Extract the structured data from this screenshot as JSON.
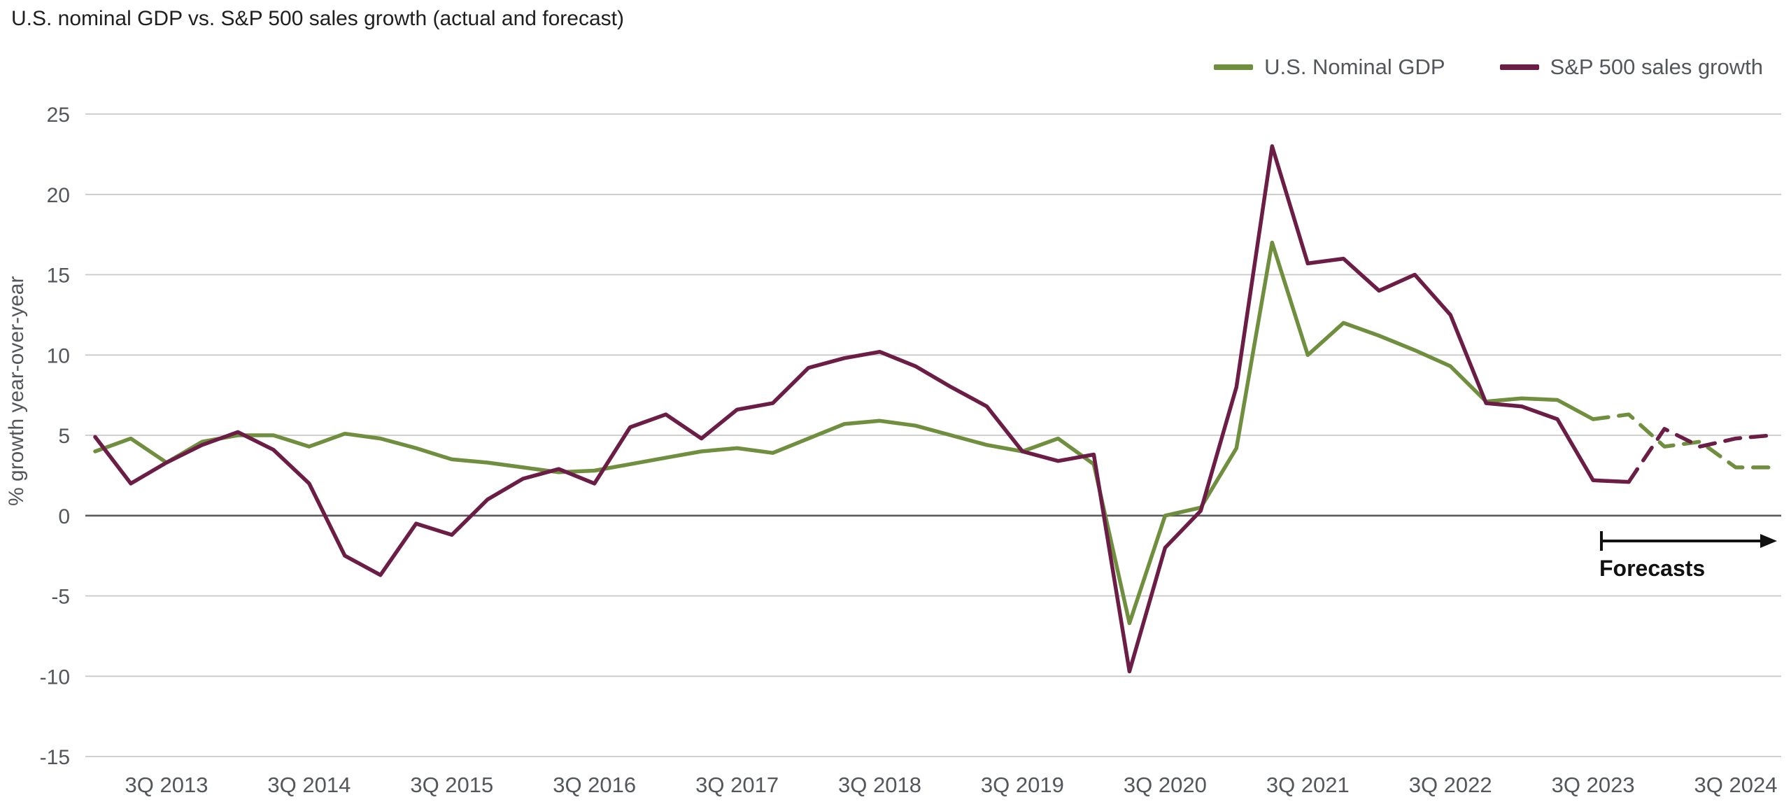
{
  "chart_data": {
    "type": "line",
    "title": "U.S. nominal GDP vs. S&P 500 sales growth (actual and forecast)",
    "xlabel": "",
    "ylabel": "% growth year-over-year",
    "ylim": [
      -15,
      25
    ],
    "y_ticks": [
      25,
      20,
      15,
      10,
      5,
      0,
      -5,
      -10,
      -15
    ],
    "grid": "horizontal",
    "legend_position": "top-right",
    "x_quarters": [
      "1Q 2013",
      "2Q 2013",
      "3Q 2013",
      "4Q 2013",
      "1Q 2014",
      "2Q 2014",
      "3Q 2014",
      "4Q 2014",
      "1Q 2015",
      "2Q 2015",
      "3Q 2015",
      "4Q 2015",
      "1Q 2016",
      "2Q 2016",
      "3Q 2016",
      "4Q 2016",
      "1Q 2017",
      "2Q 2017",
      "3Q 2017",
      "4Q 2017",
      "1Q 2018",
      "2Q 2018",
      "3Q 2018",
      "4Q 2018",
      "1Q 2019",
      "2Q 2019",
      "3Q 2019",
      "4Q 2019",
      "1Q 2020",
      "2Q 2020",
      "3Q 2020",
      "4Q 2020",
      "1Q 2021",
      "2Q 2021",
      "3Q 2021",
      "4Q 2021",
      "1Q 2022",
      "2Q 2022",
      "3Q 2022",
      "4Q 2022",
      "1Q 2023",
      "2Q 2023",
      "3Q 2023",
      "4Q 2023",
      "1Q 2024",
      "2Q 2024",
      "3Q 2024",
      "4Q 2024"
    ],
    "x_tick_labels": [
      "3Q 2013",
      "3Q 2014",
      "3Q 2015",
      "3Q 2016",
      "3Q 2017",
      "3Q 2018",
      "3Q 2019",
      "3Q 2020",
      "3Q 2021",
      "3Q 2022",
      "3Q 2023",
      "3Q 2024"
    ],
    "series": [
      {
        "name": "U.S. Nominal GDP",
        "color": "#6f8f3f",
        "forecast_start_index": 42,
        "values": [
          4.0,
          4.8,
          3.3,
          4.6,
          5.0,
          5.0,
          4.3,
          5.1,
          4.8,
          4.2,
          3.5,
          3.3,
          3.0,
          2.7,
          2.8,
          3.2,
          3.6,
          4.0,
          4.2,
          3.9,
          4.8,
          5.7,
          5.9,
          5.6,
          5.0,
          4.4,
          4.0,
          4.8,
          3.2,
          -6.7,
          0.0,
          0.5,
          4.2,
          17.0,
          10.0,
          12.0,
          11.2,
          10.3,
          9.3,
          7.1,
          7.3,
          7.2,
          6.0,
          6.3,
          4.3,
          4.6,
          3.0,
          3.0
        ]
      },
      {
        "name": "S&P 500 sales growth",
        "color": "#6b1d46",
        "forecast_start_index": 43,
        "values": [
          4.9,
          2.0,
          3.3,
          4.4,
          5.2,
          4.1,
          2.0,
          -2.5,
          -3.7,
          -0.5,
          -1.2,
          1.0,
          2.3,
          2.9,
          2.0,
          5.5,
          6.3,
          4.8,
          6.6,
          7.0,
          9.2,
          9.8,
          10.2,
          9.3,
          8.0,
          6.8,
          4.0,
          3.4,
          3.8,
          -9.7,
          -2.0,
          0.3,
          8.0,
          23.0,
          15.7,
          16.0,
          14.0,
          15.0,
          12.5,
          7.0,
          6.8,
          6.0,
          2.2,
          2.1,
          5.4,
          4.3,
          4.8,
          5.0
        ]
      }
    ],
    "annotations": [
      {
        "text": "Forecasts",
        "x": "4Q 2023",
        "y": -1.7,
        "arrow": "right"
      }
    ]
  }
}
